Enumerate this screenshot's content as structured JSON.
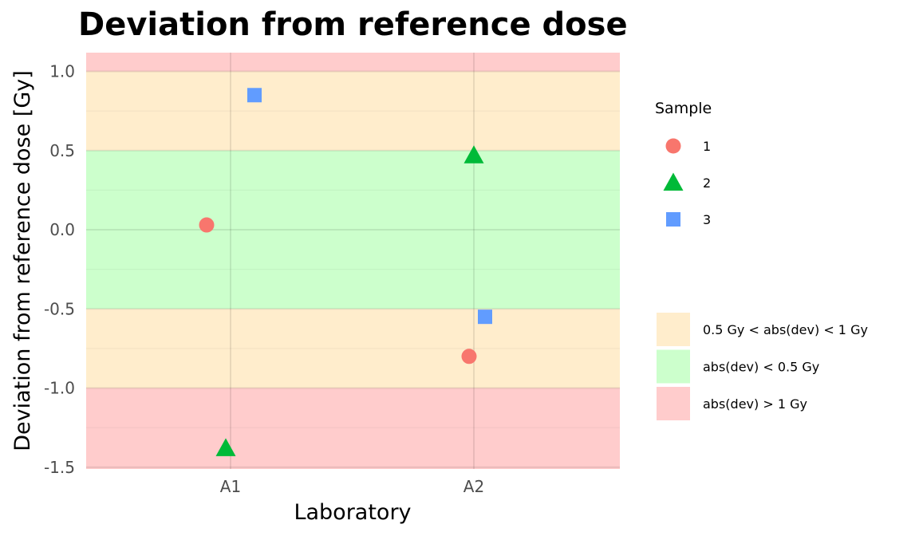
{
  "chart_data": {
    "type": "scatter",
    "title": "Deviation from reference dose",
    "xlabel": "Laboratory",
    "ylabel": "Deviation from reference dose [Gy]",
    "categories": [
      "A1",
      "A2"
    ],
    "yticks": [
      1.0,
      0.5,
      0.0,
      -0.5,
      -1.0,
      -1.5
    ],
    "ytick_labels": [
      "1.0",
      "0.5",
      "0.0",
      "-0.5",
      "-1.0",
      "-1.5"
    ],
    "ylim": [
      -1.5,
      1.0
    ],
    "grid": true,
    "series": [
      {
        "name": "1",
        "shape": "circle",
        "color": "#F8766D",
        "points": [
          {
            "x": "A1",
            "y": 0.03
          },
          {
            "x": "A2",
            "y": -0.8
          }
        ]
      },
      {
        "name": "2",
        "shape": "triangle",
        "color": "#00BA38",
        "points": [
          {
            "x": "A1",
            "y": -1.38
          },
          {
            "x": "A2",
            "y": 0.47
          }
        ]
      },
      {
        "name": "3",
        "shape": "square",
        "color": "#619CFF",
        "points": [
          {
            "x": "A1",
            "y": 0.85
          },
          {
            "x": "A2",
            "y": -0.55
          }
        ]
      }
    ],
    "bands": [
      {
        "label": "0.5 Gy < abs(dev) < 1 Gy",
        "color": "#FFEDCC"
      },
      {
        "label": "abs(dev) < 0.5 Gy",
        "color": "#CCFFCC"
      },
      {
        "label": "abs(dev) > 1 Gy",
        "color": "#FFCCCC"
      }
    ],
    "legend_title": "Sample",
    "legend_position": "right"
  }
}
